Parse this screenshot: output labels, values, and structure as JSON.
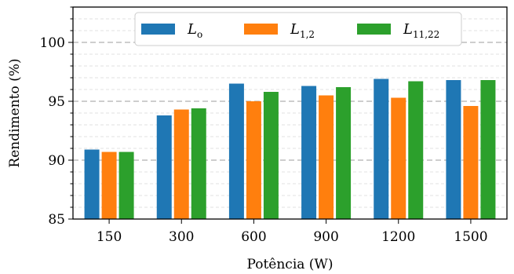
{
  "chart_data": {
    "type": "bar",
    "categories": [
      "150",
      "300",
      "600",
      "900",
      "1200",
      "1500"
    ],
    "series": [
      {
        "name": "L",
        "subscript": "o",
        "color": "#1f77b4",
        "values": [
          90.9,
          93.8,
          96.5,
          96.3,
          96.9,
          96.8
        ]
      },
      {
        "name": "L",
        "subscript": "1,2",
        "color": "#ff7f0e",
        "values": [
          90.7,
          94.3,
          95.0,
          95.5,
          95.3,
          94.6
        ]
      },
      {
        "name": "L",
        "subscript": "11,22",
        "color": "#2ca02c",
        "values": [
          90.7,
          94.4,
          95.8,
          96.2,
          96.7,
          96.8
        ]
      }
    ],
    "xlabel": "Potência (W)",
    "ylabel": "Rendimento (%)",
    "ylim": [
      85,
      103
    ],
    "yticks": [
      "85",
      "90",
      "95",
      "100"
    ],
    "ytick_values": [
      85,
      90,
      95,
      100
    ],
    "grid": "horizontal dashed",
    "legend_position": "top"
  }
}
